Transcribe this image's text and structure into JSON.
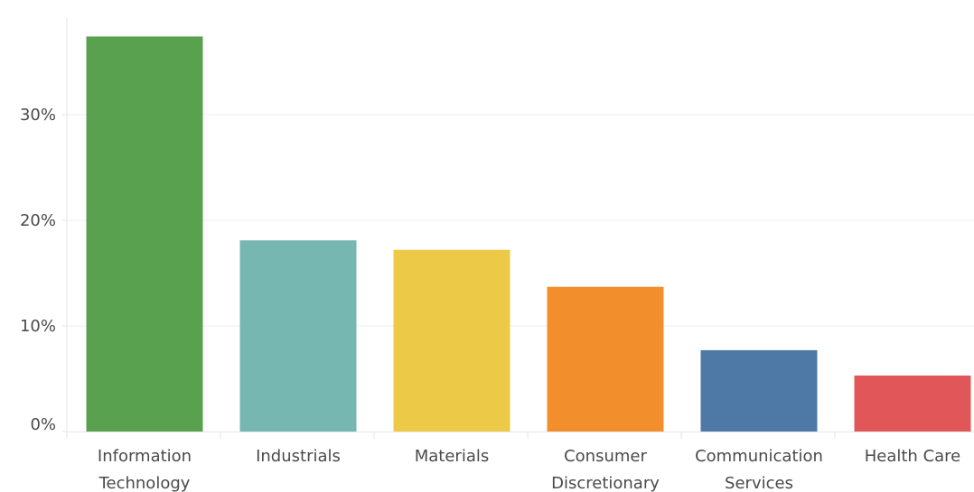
{
  "chart_data": {
    "type": "bar",
    "categories": [
      [
        "Information",
        "Technology"
      ],
      [
        "Industrials"
      ],
      [
        "Materials"
      ],
      [
        "Consumer",
        "Discretionary"
      ],
      [
        "Communication",
        "Services"
      ],
      [
        "Health Care"
      ]
    ],
    "values": [
      37.4,
      18.1,
      17.2,
      13.7,
      7.7,
      5.3
    ],
    "colors": [
      "#59a14f",
      "#76b7b2",
      "#edc948",
      "#f28e2b",
      "#4e79a7",
      "#e15759"
    ],
    "y_ticks": [
      0,
      10,
      20,
      30
    ],
    "y_tick_labels": [
      "0%",
      "10%",
      "20%",
      "30%"
    ],
    "ylim": [
      0,
      37.5
    ],
    "grid": true,
    "legend": "none",
    "title": "",
    "xlabel": "",
    "ylabel": ""
  }
}
